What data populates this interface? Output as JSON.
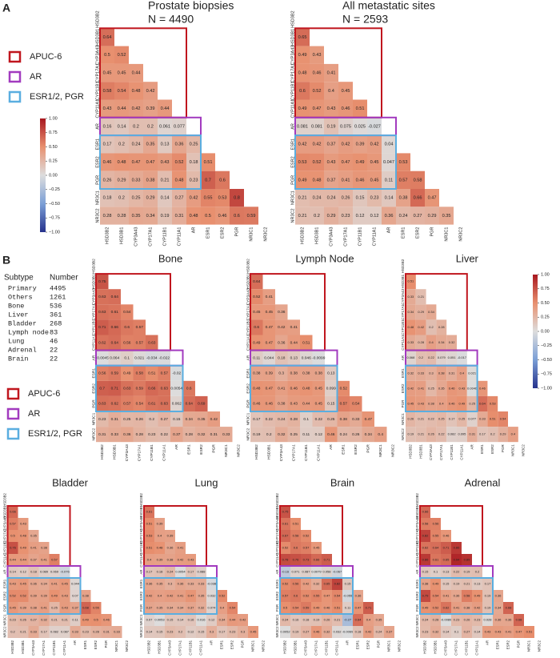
{
  "panels": [
    "A",
    "B"
  ],
  "variables": [
    "HSD3B2",
    "HSD3B1",
    "CYP3A43",
    "CYP17A1",
    "CYP11B1",
    "CYP11A1",
    "AR",
    "ESR1",
    "ESR2",
    "PGR",
    "NR3C1",
    "NR3C2"
  ],
  "colormap": [
    "#26328c",
    "#7b9fd6",
    "#dddddd",
    "#e8906f",
    "#a8171f"
  ],
  "legend": {
    "items": [
      {
        "label": "APUC-6",
        "color": "#c0161e"
      },
      {
        "label": "AR",
        "color": "#a23bbf"
      },
      {
        "label": "ESR1/2, PGR",
        "color": "#5aaee0"
      }
    ]
  },
  "table": {
    "header": [
      "Subtype",
      "Number"
    ],
    "rows": [
      [
        "Primary",
        4495
      ],
      [
        "Others",
        1261
      ],
      [
        "Bone",
        536
      ],
      [
        "Liver",
        361
      ],
      [
        "Bladder",
        268
      ],
      [
        "Lymph node",
        83
      ],
      [
        "Lung",
        46
      ],
      [
        "Adrenal",
        22
      ],
      [
        "Brain",
        22
      ]
    ]
  },
  "chart_data": [
    {
      "type": "heatmap",
      "title": "Prostate biopsies",
      "subtitle": "N = 4490",
      "values": [
        [
          0.64
        ],
        [
          0.5,
          0.52
        ],
        [
          0.45,
          0.45,
          0.44
        ],
        [
          0.58,
          0.54,
          0.48,
          0.42
        ],
        [
          0.43,
          0.44,
          0.42,
          0.39,
          0.44
        ],
        [
          0.16,
          0.14,
          0.2,
          0.2,
          0.061,
          0.077
        ],
        [
          0.17,
          0.2,
          0.24,
          0.35,
          0.13,
          0.36,
          0.25
        ],
        [
          0.46,
          0.48,
          0.47,
          0.47,
          0.43,
          0.52,
          0.18,
          0.51
        ],
        [
          0.26,
          0.29,
          0.33,
          0.38,
          0.21,
          0.48,
          0.23,
          0.7,
          0.6
        ],
        [
          0.18,
          0.2,
          0.25,
          0.29,
          0.14,
          0.27,
          0.42,
          0.55,
          0.53,
          0.8
        ],
        [
          0.28,
          0.28,
          0.35,
          0.34,
          0.19,
          0.31,
          0.48,
          0.5,
          0.46,
          0.6,
          0.59
        ]
      ]
    },
    {
      "type": "heatmap",
      "title": "All metastatic sites",
      "subtitle": "N = 2593",
      "values": [
        [
          0.65
        ],
        [
          0.49,
          0.43
        ],
        [
          0.48,
          0.46,
          0.41
        ],
        [
          0.6,
          0.52,
          0.4,
          0.45
        ],
        [
          0.49,
          0.47,
          0.43,
          0.46,
          0.51
        ],
        [
          0.081,
          0.081,
          0.19,
          0.075,
          0.025,
          -0.027
        ],
        [
          0.42,
          0.42,
          0.37,
          0.42,
          0.39,
          0.42,
          0.04
        ],
        [
          0.53,
          0.52,
          0.43,
          0.47,
          0.49,
          0.45,
          0.047,
          0.53
        ],
        [
          0.49,
          0.48,
          0.37,
          0.41,
          0.46,
          0.45,
          0.11,
          0.57,
          0.58
        ],
        [
          0.21,
          0.24,
          0.24,
          0.26,
          0.15,
          0.23,
          0.14,
          0.38,
          0.66,
          0.47
        ],
        [
          0.21,
          0.2,
          0.29,
          0.23,
          0.12,
          0.12,
          0.36,
          0.24,
          0.27,
          0.29,
          0.35
        ]
      ]
    },
    {
      "type": "colorbar",
      "ylim": [
        -1,
        1
      ],
      "yticks": [
        {
          "value": 1,
          "label": "1.00"
        },
        {
          "value": 0.75,
          "label": "0.75"
        },
        {
          "value": 0.5,
          "label": "0.50"
        },
        {
          "value": 0.25,
          "label": "0.25"
        },
        {
          "value": 0,
          "label": "0.00"
        },
        {
          "value": -0.25,
          "label": "−0.25"
        },
        {
          "value": -0.5,
          "label": "−0.50"
        },
        {
          "value": -0.75,
          "label": "−0.75"
        },
        {
          "value": -1,
          "label": "−1.00"
        }
      ]
    },
    {
      "type": "heatmap",
      "title": "Bone",
      "values": [
        [
          0.75
        ],
        [
          0.63,
          0.64
        ],
        [
          0.63,
          0.61,
          0.54
        ],
        [
          0.71,
          0.66,
          0.6,
          0.57
        ],
        [
          0.62,
          0.64,
          0.56,
          0.57,
          0.63
        ],
        [
          -0.0045,
          0.064,
          0.1,
          0.021,
          -0.034,
          -0.022
        ],
        [
          0.56,
          0.59,
          0.49,
          0.58,
          0.51,
          0.57,
          -0.02
        ],
        [
          0.7,
          0.71,
          0.63,
          0.59,
          0.66,
          0.63,
          0.0054,
          0.6
        ],
        [
          0.63,
          0.62,
          0.57,
          0.54,
          0.61,
          0.63,
          0.062,
          0.64,
          0.69
        ],
        [
          0.23,
          0.31,
          0.25,
          0.26,
          0.2,
          0.27,
          0.15,
          0.34,
          0.35,
          0.42
        ],
        [
          0.31,
          0.33,
          0.36,
          0.28,
          0.23,
          0.22,
          0.37,
          0.28,
          0.32,
          0.31,
          0.33
        ]
      ]
    },
    {
      "type": "heatmap",
      "title": "Lymph Node",
      "values": [
        [
          0.64
        ],
        [
          0.52,
          0.41
        ],
        [
          0.45,
          0.45,
          0.36
        ],
        [
          0.6,
          0.47,
          0.42,
          0.41
        ],
        [
          0.49,
          0.47,
          0.36,
          0.44,
          0.51
        ],
        [
          0.11,
          0.044,
          0.18,
          0.13,
          0.046,
          -0.0099
        ],
        [
          0.38,
          0.39,
          0.3,
          0.38,
          0.38,
          0.38,
          0.13
        ],
        [
          0.48,
          0.47,
          0.41,
          0.46,
          0.48,
          0.45,
          0.099,
          0.52
        ],
        [
          0.46,
          0.46,
          0.38,
          0.43,
          0.44,
          0.45,
          0.15,
          0.57,
          0.54
        ],
        [
          0.17,
          0.22,
          0.24,
          0.28,
          0.1,
          0.22,
          0.25,
          0.38,
          0.33,
          0.47
        ],
        [
          0.19,
          0.2,
          0.32,
          0.25,
          0.11,
          0.12,
          0.46,
          0.24,
          0.26,
          0.34,
          0.4
        ]
      ]
    },
    {
      "type": "heatmap",
      "title": "Liver",
      "values": [
        [
          0.51
        ],
        [
          0.33,
          0.21
        ],
        [
          0.34,
          0.29,
          0.34
        ],
        [
          0.48,
          0.42,
          0.2,
          0.28
        ],
        [
          0.33,
          0.28,
          0.4,
          0.34,
          0.32
        ],
        [
          0.068,
          0.2,
          0.22,
          0.079,
          0.051,
          -0.017
        ],
        [
          0.32,
          0.33,
          0.3,
          0.38,
          0.31,
          0.4,
          0.021
        ],
        [
          0.42,
          0.41,
          0.25,
          0.35,
          0.46,
          0.43,
          0.0046,
          0.46
        ],
        [
          0.45,
          0.43,
          0.38,
          0.4,
          0.46,
          0.49,
          0.25,
          0.64,
          0.53
        ],
        [
          0.26,
          0.21,
          0.22,
          0.25,
          0.17,
          0.25,
          0.077,
          0.33,
          0.51,
          0.54
        ],
        [
          0.19,
          0.21,
          0.26,
          0.22,
          0.082,
          0.095,
          0.31,
          0.17,
          0.2,
          0.29,
          0.4
        ]
      ]
    },
    {
      "type": "colorbar",
      "ylim": [
        -1,
        1
      ],
      "yticks": [
        {
          "value": 1,
          "label": "1.00"
        },
        {
          "value": 0.75,
          "label": "0.75"
        },
        {
          "value": 0.5,
          "label": "0.50"
        },
        {
          "value": 0.25,
          "label": "0.25"
        },
        {
          "value": 0,
          "label": "0.00"
        },
        {
          "value": -0.25,
          "label": "−0.25"
        },
        {
          "value": -0.5,
          "label": "−0.50"
        },
        {
          "value": -0.75,
          "label": "−0.75"
        },
        {
          "value": -1,
          "label": "−1.00"
        }
      ]
    },
    {
      "type": "heatmap",
      "title": "Bladder",
      "values": [
        [
          0.66
        ],
        [
          0.57,
          0.43
        ],
        [
          0.5,
          0.48,
          0.35
        ],
        [
          0.76,
          0.49,
          0.41,
          0.38
        ],
        [
          0.44,
          0.44,
          0.37,
          0.41,
          0.57
        ],
        [
          0.14,
          0.12,
          0.18,
          0.089,
          0.069,
          -0.076
        ],
        [
          0.43,
          0.45,
          0.36,
          0.34,
          0.41,
          0.45,
          0.044
        ],
        [
          0.52,
          0.52,
          0.39,
          0.39,
          0.49,
          0.43,
          0.07,
          0.38
        ],
        [
          0.45,
          0.39,
          0.38,
          0.41,
          0.25,
          0.43,
          0.37,
          0.68,
          0.55
        ],
        [
          0.23,
          0.26,
          0.27,
          0.32,
          0.21,
          0.21,
          0.11,
          0.49,
          0.5,
          0.46
        ],
        [
          0.2,
          0.21,
          0.33,
          0.17,
          0.082,
          0.087,
          0.33,
          0.23,
          0.28,
          0.31,
          0.33
        ]
      ]
    },
    {
      "type": "heatmap",
      "title": "Lung",
      "values": [
        [
          0.61
        ],
        [
          0.51,
          0.39
        ],
        [
          0.53,
          0.4,
          0.39
        ],
        [
          0.51,
          0.48,
          0.36,
          0.41
        ],
        [
          0.4,
          0.39,
          0.38,
          0.42,
          0.43
        ],
        [
          0.17,
          0.18,
          0.24,
          0.0054,
          0.17,
          0.088
        ],
        [
          0.36,
          0.35,
          0.3,
          0.36,
          0.33,
          0.33,
          -0.038
        ],
        [
          0.42,
          0.4,
          0.42,
          0.41,
          0.47,
          0.35,
          0.032,
          0.52
        ],
        [
          0.37,
          0.35,
          0.34,
          0.34,
          0.37,
          0.32,
          0.074,
          0.4,
          0.54
        ],
        [
          0.07,
          0.0053,
          0.15,
          0.14,
          0.16,
          0.016,
          0.12,
          0.34,
          0.44,
          0.42
        ],
        [
          0.14,
          0.15,
          0.23,
          0.2,
          0.12,
          0.15,
          0.3,
          0.17,
          0.23,
          0.3,
          0.45
        ]
      ]
    },
    {
      "type": "heatmap",
      "title": "Brain",
      "values": [
        [
          0.75
        ],
        [
          0.61,
          0.51
        ],
        [
          0.67,
          0.58,
          0.52
        ],
        [
          0.52,
          0.6,
          0.57,
          0.45
        ],
        [
          0.78,
          0.76,
          0.73,
          0.66,
          0.71
        ],
        [
          -0.16,
          0.071,
          0.087,
          0.0079,
          0.058,
          -0.067
        ],
        [
          0.52,
          0.56,
          0.42,
          0.32,
          0.65,
          0.82,
          0.15
        ],
        [
          0.57,
          0.6,
          0.52,
          0.55,
          0.47,
          0.54,
          -0.055,
          0.36
        ],
        [
          0.5,
          0.54,
          0.59,
          0.49,
          0.46,
          0.51,
          0.11,
          0.47,
          0.71
        ],
        [
          0.24,
          0.16,
          0.18,
          0.19,
          0.26,
          0.21,
          -0.27,
          0.64,
          0.4,
          0.35
        ],
        [
          0.0052,
          0.19,
          0.27,
          0.46,
          0.32,
          0.032,
          -0.0069,
          0.18,
          0.42,
          0.24,
          0.37
        ]
      ]
    },
    {
      "type": "heatmap",
      "title": "Adrenal",
      "values": [
        [
          0.66
        ],
        [
          0.58,
          0.56
        ],
        [
          0.82,
          0.55,
          0.46
        ],
        [
          0.62,
          0.64,
          0.71,
          0.86
        ],
        [
          0.86,
          0.61,
          0.65,
          0.94,
          0.89
        ],
        [
          0.15,
          0.1,
          0.13,
          0.22,
          0.19,
          0.2
        ],
        [
          0.38,
          0.49,
          0.15,
          0.19,
          0.21,
          0.13,
          0.17
        ],
        [
          0.79,
          0.54,
          0.41,
          0.36,
          0.58,
          0.49,
          0.19,
          0.36
        ],
        [
          0.49,
          0.52,
          0.62,
          0.41,
          0.38,
          0.42,
          0.19,
          0.34,
          0.68
        ],
        [
          0.24,
          0.28,
          -0.0089,
          0.23,
          0.26,
          0.23,
          0.028,
          0.36,
          0.36,
          0.68
        ],
        [
          0.23,
          0.32,
          0.14,
          0.1,
          0.27,
          0.14,
          0.43,
          0.43,
          0.41,
          0.47,
          0.51
        ]
      ]
    }
  ]
}
